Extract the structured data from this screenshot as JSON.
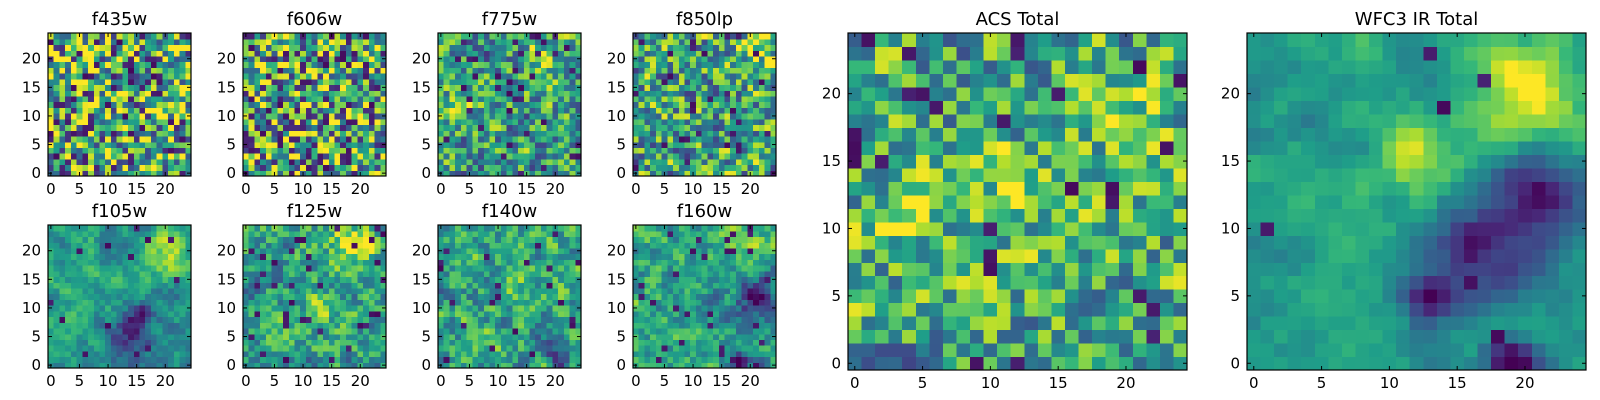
{
  "figure": {
    "colormap": "viridis",
    "colors": {
      "axis": "#000000",
      "background": "#ffffff"
    }
  },
  "chart_data": [
    {
      "type": "heatmap",
      "title": "f435w",
      "grid": false,
      "xlim": [
        -0.5,
        24.5
      ],
      "ylim": [
        -0.5,
        24.5
      ],
      "xticks": [
        0,
        5,
        10,
        15,
        20
      ],
      "yticks": [
        0,
        5,
        10,
        15,
        20
      ],
      "field": {
        "seed": 11,
        "smooth": 0,
        "dark": 0.06,
        "base": 0.6,
        "noise": 0.55,
        "blobs": []
      }
    },
    {
      "type": "heatmap",
      "title": "f606w",
      "grid": false,
      "xlim": [
        -0.5,
        24.5
      ],
      "ylim": [
        -0.5,
        24.5
      ],
      "xticks": [
        0,
        5,
        10,
        15,
        20
      ],
      "yticks": [
        0,
        5,
        10,
        15,
        20
      ],
      "field": {
        "seed": 23,
        "smooth": 0,
        "dark": 0.06,
        "base": 0.6,
        "noise": 0.55,
        "blobs": []
      }
    },
    {
      "type": "heatmap",
      "title": "f775w",
      "grid": false,
      "xlim": [
        -0.5,
        24.5
      ],
      "ylim": [
        -0.5,
        24.5
      ],
      "xticks": [
        0,
        5,
        10,
        15,
        20
      ],
      "yticks": [
        0,
        5,
        10,
        15,
        20
      ],
      "field": {
        "seed": 37,
        "smooth": 0.35,
        "dark": 0.07,
        "base": 0.55,
        "noise": 0.5,
        "blobs": [
          [
            18,
            20,
            0.25,
            4
          ],
          [
            4,
            11,
            0.2,
            3
          ]
        ]
      }
    },
    {
      "type": "heatmap",
      "title": "f850lp",
      "grid": false,
      "xlim": [
        -0.5,
        24.5
      ],
      "ylim": [
        -0.5,
        24.5
      ],
      "xticks": [
        0,
        5,
        10,
        15,
        20
      ],
      "yticks": [
        0,
        5,
        10,
        15,
        20
      ],
      "field": {
        "seed": 41,
        "smooth": 0.25,
        "dark": 0.06,
        "base": 0.58,
        "noise": 0.5,
        "blobs": [
          [
            21,
            22,
            0.25,
            3
          ]
        ]
      }
    },
    {
      "type": "heatmap",
      "title": "f105w",
      "grid": false,
      "xlim": [
        -0.5,
        24.5
      ],
      "ylim": [
        -0.5,
        24.5
      ],
      "xticks": [
        0,
        5,
        10,
        15,
        20
      ],
      "yticks": [
        0,
        5,
        10,
        15,
        20
      ],
      "field": {
        "seed": 53,
        "smooth": 0.7,
        "dark": 0.03,
        "base": 0.55,
        "noise": 0.35,
        "blobs": [
          [
            21,
            20,
            0.4,
            4
          ],
          [
            14,
            5,
            -0.4,
            4
          ],
          [
            16,
            8,
            -0.25,
            3
          ]
        ]
      }
    },
    {
      "type": "heatmap",
      "title": "f125w",
      "grid": false,
      "xlim": [
        -0.5,
        24.5
      ],
      "ylim": [
        -0.5,
        24.5
      ],
      "xticks": [
        0,
        5,
        10,
        15,
        20
      ],
      "yticks": [
        0,
        5,
        10,
        15,
        20
      ],
      "field": {
        "seed": 67,
        "smooth": 0.55,
        "dark": 0.04,
        "base": 0.58,
        "noise": 0.45,
        "blobs": [
          [
            19,
            21,
            0.35,
            4
          ],
          [
            12,
            9,
            0.2,
            3
          ]
        ]
      }
    },
    {
      "type": "heatmap",
      "title": "f140w",
      "grid": false,
      "xlim": [
        -0.5,
        24.5
      ],
      "ylim": [
        -0.5,
        24.5
      ],
      "xticks": [
        0,
        5,
        10,
        15,
        20
      ],
      "yticks": [
        0,
        5,
        10,
        15,
        20
      ],
      "field": {
        "seed": 79,
        "smooth": 0.55,
        "dark": 0.05,
        "base": 0.58,
        "noise": 0.45,
        "blobs": [
          [
            6,
            4,
            0.25,
            3
          ],
          [
            15,
            14,
            0.2,
            3
          ],
          [
            20,
            3,
            -0.3,
            3
          ]
        ]
      }
    },
    {
      "type": "heatmap",
      "title": "f160w",
      "grid": false,
      "xlim": [
        -0.5,
        24.5
      ],
      "ylim": [
        -0.5,
        24.5
      ],
      "xticks": [
        0,
        5,
        10,
        15,
        20
      ],
      "yticks": [
        0,
        5,
        10,
        15,
        20
      ],
      "field": {
        "seed": 83,
        "smooth": 0.6,
        "dark": 0.05,
        "base": 0.58,
        "noise": 0.4,
        "blobs": [
          [
            19,
            22,
            0.35,
            3
          ],
          [
            21,
            12,
            -0.4,
            4
          ],
          [
            18,
            1,
            -0.45,
            2
          ]
        ]
      }
    },
    {
      "type": "heatmap",
      "title": "ACS Total",
      "grid": false,
      "xlim": [
        -0.5,
        24.5
      ],
      "ylim": [
        -0.5,
        24.5
      ],
      "xticks": [
        0,
        5,
        10,
        15,
        20
      ],
      "yticks": [
        0,
        5,
        10,
        15,
        20
      ],
      "field": {
        "seed": 97,
        "smooth": 0.3,
        "dark": 0.05,
        "base": 0.6,
        "noise": 0.45,
        "blobs": [
          [
            19,
            19,
            0.25,
            3
          ],
          [
            4,
            11,
            0.25,
            3
          ],
          [
            12,
            13,
            0.2,
            3
          ]
        ]
      }
    },
    {
      "type": "heatmap",
      "title": "WFC3 IR Total",
      "grid": false,
      "xlim": [
        -0.5,
        24.5
      ],
      "ylim": [
        -0.5,
        24.5
      ],
      "xticks": [
        0,
        5,
        10,
        15,
        20
      ],
      "yticks": [
        0,
        5,
        10,
        15,
        20
      ],
      "field": {
        "seed": 101,
        "smooth": 0.8,
        "dark": 0.01,
        "base": 0.55,
        "noise": 0.25,
        "blobs": [
          [
            20,
            20,
            0.45,
            4
          ],
          [
            12,
            15,
            0.35,
            3
          ],
          [
            21,
            13,
            -0.5,
            3
          ],
          [
            17,
            8,
            -0.45,
            4
          ],
          [
            13,
            5,
            -0.35,
            2
          ],
          [
            19,
            0,
            -0.5,
            2
          ]
        ]
      }
    }
  ]
}
